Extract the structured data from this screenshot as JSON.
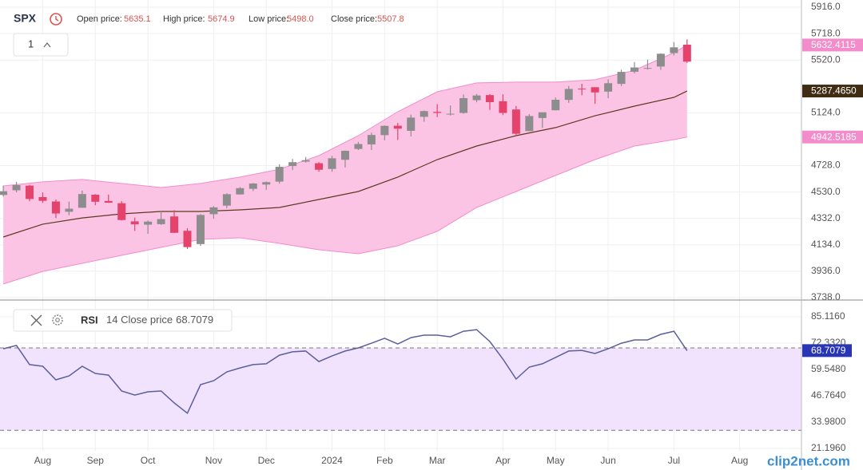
{
  "chart_data": [
    {
      "type": "candlestick",
      "title": "SPX",
      "interval": "1",
      "legend_names": [
        "Open price:",
        "High price:",
        "Low price:",
        "Close price:"
      ],
      "legend_values": [
        5635.1,
        5674.9,
        5498,
        5507.8
      ],
      "legend_value_labels": [
        "5635.1",
        "5674.9",
        "5498.0",
        "5507.8"
      ],
      "open": [
        4508,
        4543,
        4578,
        4492,
        4459,
        4382,
        4412,
        4510,
        4463,
        4446,
        4310,
        4285,
        4289,
        4347,
        4239,
        4140,
        4364,
        4428,
        4512,
        4554,
        4586,
        4608,
        4725,
        4758,
        4746,
        4703,
        4772,
        4853,
        4887,
        4957,
        5027,
        4989,
        5094,
        5131,
        5111,
        5123,
        5219,
        5257,
        5211,
        5149,
        4987,
        5085,
        5143,
        5221,
        5305,
        5316,
        5283,
        5341,
        5432,
        5459,
        5471,
        5572,
        5635.1
      ],
      "high": [
        4578,
        4607,
        4584,
        4527,
        4474,
        4458,
        4541,
        4514,
        4511,
        4462,
        4338,
        4317,
        4385,
        4394,
        4259,
        4365,
        4424,
        4521,
        4567,
        4597,
        4609,
        4738,
        4778,
        4793,
        4754,
        4802,
        4842,
        4906,
        4975,
        5030,
        5048,
        5111,
        5141,
        5189,
        5179,
        5262,
        5265,
        5264,
        5263,
        5175,
        5114,
        5124,
        5239,
        5325,
        5342,
        5315,
        5375,
        5447,
        5505,
        5523,
        5570,
        5655,
        5674.9
      ],
      "low": [
        4497,
        4528,
        4461,
        4448,
        4335,
        4356,
        4411,
        4431,
        4448,
        4316,
        4238,
        4216,
        4283,
        4223,
        4103,
        4126,
        4329,
        4408,
        4511,
        4537,
        4546,
        4593,
        4695,
        4751,
        4682,
        4682,
        4714,
        4845,
        4845,
        4918,
        4920,
        4947,
        5057,
        5092,
        5104,
        5117,
        5203,
        5146,
        5107,
        4953,
        4985,
        5011,
        5143,
        5199,
        5256,
        5191,
        5234,
        5325,
        5420,
        5448,
        5445,
        5554,
        5498
      ],
      "close": [
        4536,
        4582,
        4478,
        4464,
        4369,
        4405,
        4515,
        4457,
        4450,
        4320,
        4288,
        4308,
        4327,
        4224,
        4117,
        4358,
        4415,
        4514,
        4559,
        4594,
        4604,
        4719,
        4754,
        4769,
        4697,
        4783,
        4839,
        4890,
        4958,
        5026,
        5005,
        5088,
        5137,
        5123,
        5117,
        5234,
        5254,
        5204,
        5123,
        4967,
        5100,
        5128,
        5222,
        5303,
        5304,
        5277,
        5346,
        5431,
        5464,
        5460,
        5567,
        5615,
        5507.8
      ],
      "up_color": "#8d8d8d",
      "down_color": "#e6436c",
      "bands": {
        "x": [
          0,
          3,
          6,
          9,
          12,
          15,
          18,
          21,
          24,
          27,
          30,
          33,
          36,
          39,
          42,
          45,
          48,
          51,
          52
        ],
        "upper": [
          4576,
          4606,
          4624,
          4594,
          4564,
          4594,
          4642,
          4701,
          4803,
          4953,
          5132,
          5282,
          5348,
          5354,
          5354,
          5372,
          5443,
          5575,
          5632.4115
        ],
        "middle": [
          4193,
          4289,
          4336,
          4366,
          4384,
          4384,
          4396,
          4414,
          4474,
          4534,
          4642,
          4773,
          4875,
          4953,
          5013,
          5102,
          5174,
          5240,
          5287.465
        ],
        "lower": [
          3840,
          3935,
          3995,
          4055,
          4115,
          4175,
          4187,
          4145,
          4097,
          4067,
          4127,
          4235,
          4414,
          4534,
          4654,
          4773,
          4875,
          4923,
          4942.5185
        ],
        "upper_label": "5632.4115",
        "middle_label": "5287.4650",
        "lower_label": "4942.5185",
        "fill_color": "#fbc4e4",
        "edge_color": "#f28ccb",
        "middle_color": "#5b3b1f",
        "middle_tag_color": "#3f2c13"
      },
      "xlim": [
        -0.25,
        60.7
      ],
      "xticks": [
        {
          "value": 3,
          "label": "Aug"
        },
        {
          "value": 7,
          "label": "Sep"
        },
        {
          "value": 11,
          "label": "Oct"
        },
        {
          "value": 16,
          "label": "Nov"
        },
        {
          "value": 20,
          "label": "Dec"
        },
        {
          "value": 25,
          "label": "2024"
        },
        {
          "value": 29,
          "label": "Feb"
        },
        {
          "value": 33,
          "label": "Mar"
        },
        {
          "value": 38,
          "label": "Apr"
        },
        {
          "value": 42,
          "label": "May"
        },
        {
          "value": 46,
          "label": "Jun"
        },
        {
          "value": 51,
          "label": "Jul"
        },
        {
          "value": 56,
          "label": "Aug"
        }
      ],
      "ylim": [
        3726,
        5970
      ],
      "yticks": [
        {
          "value": 3738,
          "label": "3738.0"
        },
        {
          "value": 3936,
          "label": "3936.0"
        },
        {
          "value": 4134,
          "label": "4134.0"
        },
        {
          "value": 4332,
          "label": "4332.0"
        },
        {
          "value": 4530,
          "label": "4530.0"
        },
        {
          "value": 4728,
          "label": "4728.0"
        },
        {
          "value": 5124,
          "label": "5124.0"
        },
        {
          "value": 5520,
          "label": "5520.0"
        },
        {
          "value": 5718,
          "label": "5718.0"
        },
        {
          "value": 5916,
          "label": "5916.0"
        }
      ],
      "grid": true,
      "watermark": "clip2net.com"
    },
    {
      "type": "line",
      "title": "RSI",
      "params": "14 Close price",
      "values": [
        69.6,
        71.2,
        61.9,
        61.1,
        54.5,
        56.4,
        61.1,
        57.6,
        56.8,
        49.1,
        47.1,
        48.7,
        49.1,
        43.3,
        38.3,
        52.2,
        54.1,
        58.4,
        60.3,
        61.9,
        62.3,
        66.5,
        68.1,
        68.5,
        63.4,
        66.1,
        68.5,
        70.0,
        72.3,
        74.7,
        71.9,
        75.0,
        76.2,
        76.2,
        75.4,
        78.1,
        78.9,
        73.1,
        64.6,
        54.9,
        60.7,
        62.3,
        65.4,
        68.5,
        68.8,
        67.3,
        69.6,
        72.3,
        73.9,
        73.9,
        76.6,
        78.1,
        68.7079
      ],
      "color": "#5b5f9a",
      "levels": [
        70,
        30
      ],
      "zone_color": "#f1e3fd",
      "tag_color": "#2836b5",
      "ylim": [
        20.03,
        89.77
      ],
      "yticks": [
        {
          "value": 21.196,
          "label": "21.1960"
        },
        {
          "value": 33.98,
          "label": "33.9800"
        },
        {
          "value": 46.764,
          "label": "46.7640"
        },
        {
          "value": 59.548,
          "label": "59.5480"
        },
        {
          "value": 72.332,
          "label": "72.3320"
        },
        {
          "value": 85.116,
          "label": "85.1160"
        }
      ]
    }
  ]
}
